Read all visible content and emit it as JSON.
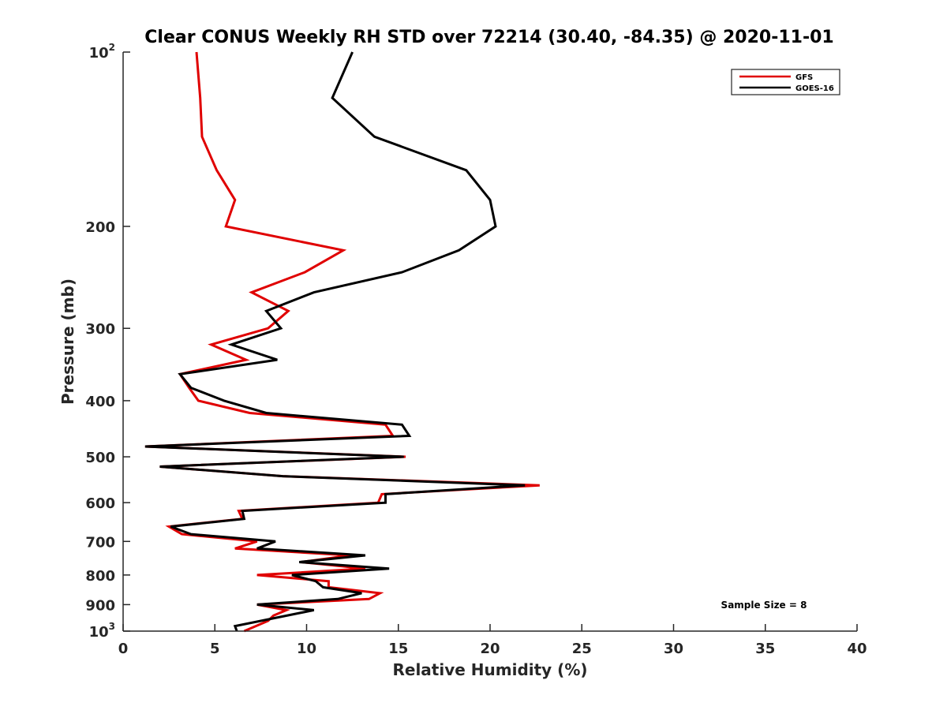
{
  "chart_data": {
    "type": "line",
    "title": "Clear CONUS Weekly RH STD over 72214 (30.40, -84.35) @ 2020-11-01",
    "xlabel": "Relative Humidity (%)",
    "ylabel": "Pressure (mb)",
    "xlim": [
      0,
      40
    ],
    "ylim": [
      100,
      1000
    ],
    "yscale": "log",
    "yreversed": true,
    "grid": false,
    "x_ticks": [
      {
        "value": 0,
        "label": "0"
      },
      {
        "value": 5,
        "label": "5"
      },
      {
        "value": 10,
        "label": "10"
      },
      {
        "value": 15,
        "label": "15"
      },
      {
        "value": 20,
        "label": "20"
      },
      {
        "value": 25,
        "label": "25"
      },
      {
        "value": 30,
        "label": "30"
      },
      {
        "value": 35,
        "label": "35"
      },
      {
        "value": 40,
        "label": "40"
      }
    ],
    "y_ticks": [
      {
        "value": 100,
        "base": "10",
        "exp": "2"
      },
      {
        "value": 200,
        "label": "200"
      },
      {
        "value": 300,
        "label": "300"
      },
      {
        "value": 400,
        "label": "400"
      },
      {
        "value": 500,
        "label": "500"
      },
      {
        "value": 600,
        "label": "600"
      },
      {
        "value": 700,
        "label": "700"
      },
      {
        "value": 800,
        "label": "800"
      },
      {
        "value": 900,
        "label": "900"
      },
      {
        "value": 1000,
        "base": "10",
        "exp": "3"
      }
    ],
    "legend": {
      "position": "top-right"
    },
    "annotation": "Sample Size = 8",
    "series": [
      {
        "name": "GFS",
        "color": "#e00000",
        "points": [
          {
            "p": 100,
            "rh": 4.0
          },
          {
            "p": 120,
            "rh": 4.2
          },
          {
            "p": 140,
            "rh": 4.3
          },
          {
            "p": 160,
            "rh": 5.1
          },
          {
            "p": 180,
            "rh": 6.1
          },
          {
            "p": 200,
            "rh": 5.6
          },
          {
            "p": 220,
            "rh": 12.0
          },
          {
            "p": 240,
            "rh": 9.9
          },
          {
            "p": 260,
            "rh": 7.0
          },
          {
            "p": 280,
            "rh": 9.0
          },
          {
            "p": 300,
            "rh": 7.9
          },
          {
            "p": 320,
            "rh": 4.8
          },
          {
            "p": 340,
            "rh": 6.7
          },
          {
            "p": 360,
            "rh": 3.1
          },
          {
            "p": 380,
            "rh": 3.6
          },
          {
            "p": 400,
            "rh": 4.1
          },
          {
            "p": 420,
            "rh": 6.9
          },
          {
            "p": 440,
            "rh": 14.3
          },
          {
            "p": 460,
            "rh": 14.7
          },
          {
            "p": 480,
            "rh": 1.2
          },
          {
            "p": 500,
            "rh": 15.4
          },
          {
            "p": 520,
            "rh": 2.0
          },
          {
            "p": 540,
            "rh": 8.7
          },
          {
            "p": 560,
            "rh": 22.7
          },
          {
            "p": 580,
            "rh": 14.1
          },
          {
            "p": 600,
            "rh": 13.9
          },
          {
            "p": 620,
            "rh": 6.3
          },
          {
            "p": 640,
            "rh": 6.5
          },
          {
            "p": 660,
            "rh": 2.5
          },
          {
            "p": 680,
            "rh": 3.2
          },
          {
            "p": 700,
            "rh": 7.3
          },
          {
            "p": 720,
            "rh": 6.1
          },
          {
            "p": 740,
            "rh": 12.4
          },
          {
            "p": 760,
            "rh": 9.7
          },
          {
            "p": 780,
            "rh": 13.2
          },
          {
            "p": 800,
            "rh": 7.3
          },
          {
            "p": 820,
            "rh": 11.2
          },
          {
            "p": 840,
            "rh": 11.2
          },
          {
            "p": 860,
            "rh": 14.0
          },
          {
            "p": 880,
            "rh": 13.4
          },
          {
            "p": 900,
            "rh": 7.3
          },
          {
            "p": 920,
            "rh": 8.9
          },
          {
            "p": 940,
            "rh": 8.2
          },
          {
            "p": 960,
            "rh": 7.9
          },
          {
            "p": 1000,
            "rh": 6.6
          }
        ]
      },
      {
        "name": "GOES-16",
        "color": "#000000",
        "points": [
          {
            "p": 100,
            "rh": 12.5
          },
          {
            "p": 120,
            "rh": 11.4
          },
          {
            "p": 140,
            "rh": 13.7
          },
          {
            "p": 160,
            "rh": 18.7
          },
          {
            "p": 180,
            "rh": 20.0
          },
          {
            "p": 200,
            "rh": 20.3
          },
          {
            "p": 220,
            "rh": 18.3
          },
          {
            "p": 240,
            "rh": 15.2
          },
          {
            "p": 260,
            "rh": 10.4
          },
          {
            "p": 280,
            "rh": 7.8
          },
          {
            "p": 300,
            "rh": 8.6
          },
          {
            "p": 320,
            "rh": 5.9
          },
          {
            "p": 340,
            "rh": 8.4
          },
          {
            "p": 360,
            "rh": 3.1
          },
          {
            "p": 380,
            "rh": 3.7
          },
          {
            "p": 400,
            "rh": 5.5
          },
          {
            "p": 420,
            "rh": 7.8
          },
          {
            "p": 440,
            "rh": 15.2
          },
          {
            "p": 460,
            "rh": 15.6
          },
          {
            "p": 480,
            "rh": 1.2
          },
          {
            "p": 500,
            "rh": 15.3
          },
          {
            "p": 520,
            "rh": 2.0
          },
          {
            "p": 540,
            "rh": 8.7
          },
          {
            "p": 560,
            "rh": 21.9
          },
          {
            "p": 580,
            "rh": 14.3
          },
          {
            "p": 600,
            "rh": 14.3
          },
          {
            "p": 620,
            "rh": 6.5
          },
          {
            "p": 640,
            "rh": 6.6
          },
          {
            "p": 660,
            "rh": 2.6
          },
          {
            "p": 680,
            "rh": 3.7
          },
          {
            "p": 700,
            "rh": 8.3
          },
          {
            "p": 720,
            "rh": 7.3
          },
          {
            "p": 740,
            "rh": 13.2
          },
          {
            "p": 760,
            "rh": 9.6
          },
          {
            "p": 780,
            "rh": 14.5
          },
          {
            "p": 800,
            "rh": 9.2
          },
          {
            "p": 820,
            "rh": 10.5
          },
          {
            "p": 840,
            "rh": 10.9
          },
          {
            "p": 860,
            "rh": 13.0
          },
          {
            "p": 880,
            "rh": 11.7
          },
          {
            "p": 900,
            "rh": 7.3
          },
          {
            "p": 920,
            "rh": 10.4
          },
          {
            "p": 980,
            "rh": 6.1
          },
          {
            "p": 1000,
            "rh": 6.2
          }
        ]
      }
    ]
  }
}
